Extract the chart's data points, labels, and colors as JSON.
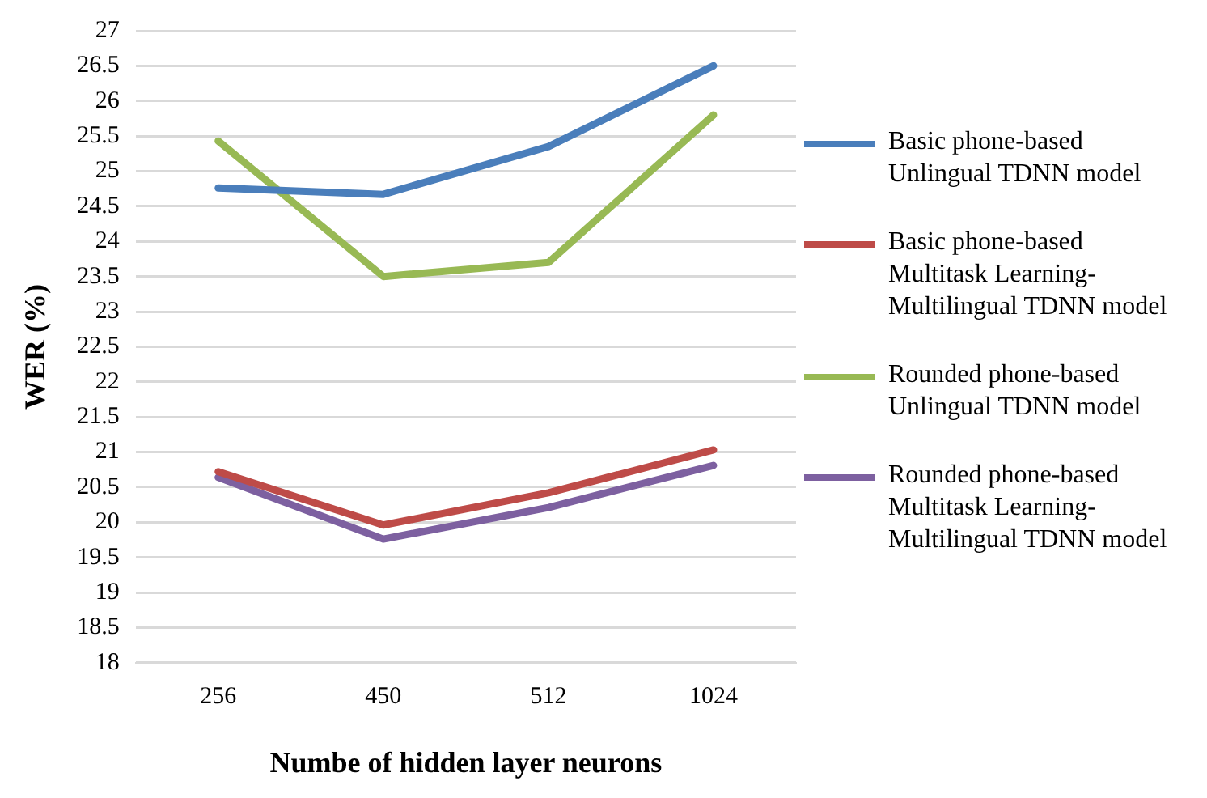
{
  "chart_data": {
    "type": "line",
    "xlabel": "Numbe of hidden layer neurons",
    "ylabel": "WER (%)",
    "categories": [
      "256",
      "450",
      "512",
      "1024"
    ],
    "series": [
      {
        "name": "Basic phone-based Unlingual TDNN model",
        "color": "#4a7ebb",
        "values": [
          24.76,
          24.67,
          25.35,
          26.5
        ]
      },
      {
        "name": "Basic phone-based Multitask Learning-Multilingual TDNN model",
        "color": "#be4b48",
        "values": [
          20.72,
          19.96,
          20.42,
          21.03
        ]
      },
      {
        "name": "Rounded phone-based Unlingual TDNN model",
        "color": "#98b954",
        "values": [
          25.43,
          23.5,
          23.7,
          25.8
        ]
      },
      {
        "name": "Rounded phone-based Multitask Learning-Multilingual TDNN model",
        "color": "#7d60a0",
        "values": [
          20.64,
          19.76,
          20.21,
          20.81
        ]
      }
    ],
    "ylim": [
      18,
      27
    ],
    "yticks": [
      18,
      18.5,
      19,
      19.5,
      20,
      20.5,
      21,
      21.5,
      22,
      22.5,
      23,
      23.5,
      24,
      24.5,
      25,
      25.5,
      26,
      26.5,
      27
    ],
    "grid": "y",
    "legend": "right",
    "marker": "none",
    "line_style": "solid"
  }
}
